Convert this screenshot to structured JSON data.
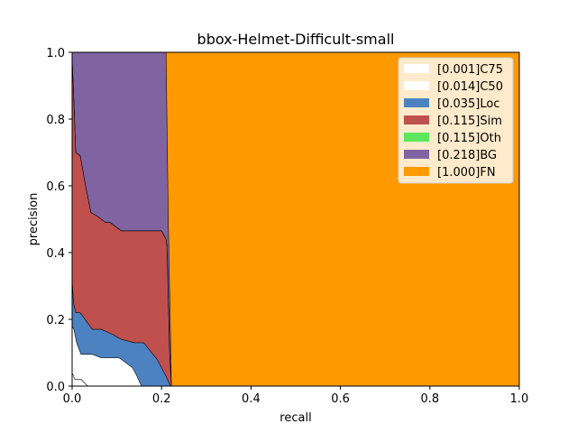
{
  "chart_data": {
    "type": "area",
    "title": "bbox-Helmet-Difficult-small",
    "xlabel": "recall",
    "ylabel": "precision",
    "xlim": [
      0,
      1
    ],
    "ylim": [
      0,
      1
    ],
    "x_ticks": [
      "0.0",
      "0.2",
      "0.4",
      "0.6",
      "0.8",
      "1.0"
    ],
    "y_ticks": [
      "0.0",
      "0.2",
      "0.4",
      "0.6",
      "0.8",
      "1.0"
    ],
    "grid": false,
    "legend_position": "top-right",
    "series": [
      {
        "name": "[0.001]C75",
        "color": "#ffffff",
        "points": [
          [
            0,
            0.04
          ],
          [
            0.006,
            0.02
          ],
          [
            0.02,
            0.02
          ],
          [
            0.035,
            0
          ],
          [
            1,
            0
          ]
        ]
      },
      {
        "name": "[0.014]C50",
        "color": "#ffffff",
        "points": [
          [
            0,
            0.18
          ],
          [
            0.004,
            0.17
          ],
          [
            0.01,
            0.13
          ],
          [
            0.02,
            0.095
          ],
          [
            0.045,
            0.095
          ],
          [
            0.065,
            0.085
          ],
          [
            0.105,
            0.085
          ],
          [
            0.135,
            0.055
          ],
          [
            0.145,
            0.03
          ],
          [
            0.155,
            0
          ],
          [
            1,
            0
          ]
        ]
      },
      {
        "name": "[0.035]Loc",
        "color": "#4c82c2",
        "points": [
          [
            0,
            0.32
          ],
          [
            0.003,
            0.25
          ],
          [
            0.008,
            0.22
          ],
          [
            0.018,
            0.22
          ],
          [
            0.045,
            0.17
          ],
          [
            0.065,
            0.17
          ],
          [
            0.09,
            0.155
          ],
          [
            0.11,
            0.14
          ],
          [
            0.14,
            0.13
          ],
          [
            0.16,
            0.13
          ],
          [
            0.19,
            0.08
          ],
          [
            0.21,
            0.03
          ],
          [
            0.22,
            0
          ],
          [
            1,
            0
          ]
        ]
      },
      {
        "name": "[0.115]Sim",
        "color": "#c0504d",
        "points": [
          [
            0,
            0.98
          ],
          [
            0.004,
            0.85
          ],
          [
            0.008,
            0.7
          ],
          [
            0.018,
            0.69
          ],
          [
            0.03,
            0.6
          ],
          [
            0.042,
            0.52
          ],
          [
            0.055,
            0.51
          ],
          [
            0.075,
            0.49
          ],
          [
            0.085,
            0.49
          ],
          [
            0.11,
            0.465
          ],
          [
            0.2,
            0.465
          ],
          [
            0.21,
            0.44
          ],
          [
            0.212,
            0.42
          ],
          [
            0.218,
            0.1
          ],
          [
            0.222,
            0
          ],
          [
            1,
            0
          ]
        ]
      },
      {
        "name": "[0.115]Oth",
        "color": "#5ce65c",
        "points": [
          [
            0,
            0.98
          ],
          [
            0.004,
            0.85
          ],
          [
            0.008,
            0.7
          ],
          [
            0.018,
            0.69
          ],
          [
            0.03,
            0.6
          ],
          [
            0.042,
            0.52
          ],
          [
            0.055,
            0.51
          ],
          [
            0.075,
            0.49
          ],
          [
            0.085,
            0.49
          ],
          [
            0.11,
            0.465
          ],
          [
            0.2,
            0.465
          ],
          [
            0.21,
            0.44
          ],
          [
            0.212,
            0.42
          ],
          [
            0.218,
            0.1
          ],
          [
            0.222,
            0
          ],
          [
            1,
            0
          ]
        ]
      },
      {
        "name": "[0.218]BG",
        "color": "#8064a2",
        "points": [
          [
            0,
            1
          ],
          [
            0.21,
            1
          ],
          [
            0.215,
            0.5
          ],
          [
            0.222,
            0
          ],
          [
            1,
            0
          ]
        ]
      },
      {
        "name": "[1.000]FN",
        "color": "#ff9900",
        "points": [
          [
            0,
            1
          ],
          [
            1,
            1
          ],
          [
            1,
            0
          ]
        ]
      }
    ]
  }
}
